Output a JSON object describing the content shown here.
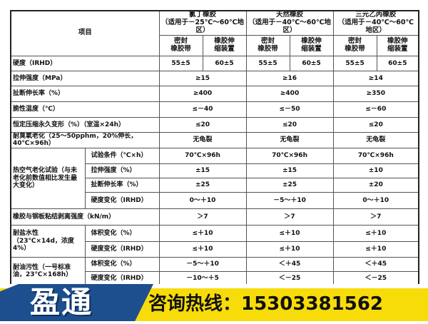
{
  "header": {
    "item_label": "项目",
    "groups": [
      {
        "name": "氯丁橡胶",
        "range": "（适用于－25℃～60℃地区）",
        "sub": [
          "密封\n橡胶带",
          "橡胶伸\n缩装置"
        ]
      },
      {
        "name": "天然橡胶",
        "range": "（适用于－40℃～60℃地区）",
        "sub": [
          "密封\n橡胶带",
          "橡胶伸\n缩装置"
        ]
      },
      {
        "name": "三元乙丙橡胶",
        "range": "（适用于－40℃～60℃地区）",
        "sub": [
          "密封\n橡胶带",
          "橡胶伸\n缩装置"
        ]
      }
    ]
  },
  "rows": [
    {
      "label": "硬度（IRHD）",
      "values": [
        "55±5",
        "60±5",
        "55±5",
        "60±5",
        "55±5",
        "60±5"
      ]
    },
    {
      "label": "拉伸强度（MPa）",
      "values": [
        "≥15",
        "≥16",
        "≥14"
      ]
    },
    {
      "label": "扯断伸长率（%）",
      "values": [
        "≥400",
        "≥400",
        "≥350"
      ]
    },
    {
      "label": "脆性温度（℃）",
      "values": [
        "≤－40",
        "≤－50",
        "≤－60"
      ]
    },
    {
      "label": "恒定压缩永久变形（%）（室温×24h）",
      "values": [
        "≤20",
        "≤20",
        "≤20"
      ]
    },
    {
      "label": "耐臭氧老化（25～50pphm，20%伸长，40℃×96h）",
      "values": [
        "无龟裂",
        "无龟裂",
        "无龟裂"
      ]
    },
    {
      "label": "热空气老化试验（与未老化前数值相比发生最大变化）",
      "subrows": [
        {
          "label": "试验条件（℃×h）",
          "values": [
            "70℃×96h",
            "70℃×96h",
            "70℃×96h"
          ]
        },
        {
          "label": "拉伸强度（%）",
          "values": [
            "±15",
            "±15",
            "±10"
          ]
        },
        {
          "label": "扯断伸长率（%）",
          "values": [
            "±25",
            "±25",
            "±20"
          ]
        },
        {
          "label": "硬度变化（IRHD）",
          "values": [
            "0～＋10",
            "－5～＋10",
            "0～＋10"
          ]
        }
      ]
    },
    {
      "label": "橡胶与钢板粘结剥离强度（kN/m）",
      "values": [
        "＞7",
        "＞7",
        "＞7"
      ]
    },
    {
      "label": "耐盐水性（23℃×14d，浓度4%）",
      "subrows": [
        {
          "label": "体积变化（%）",
          "values": [
            "≤＋10",
            "≤＋10",
            "≤＋10"
          ]
        },
        {
          "label": "硬度变化（IRHD）",
          "values": [
            "≤＋10",
            "≤＋10",
            "≤＋10"
          ]
        }
      ]
    },
    {
      "label": "耐油污性（一号标准油，23℃×168h）",
      "subrows": [
        {
          "label": "体积变化（%）",
          "values": [
            "－5～＋10",
            "＜＋45",
            "＜＋45"
          ]
        },
        {
          "label": "硬度变化（IRHD）",
          "values": [
            "－10～＋5",
            "＜－25",
            "＜－25"
          ]
        }
      ]
    }
  ],
  "banner": {
    "brand": "盈通",
    "hotline": "咨询热线：15303381562",
    "blue": "#1d4f8f",
    "yellow": "#f7dc0a"
  }
}
